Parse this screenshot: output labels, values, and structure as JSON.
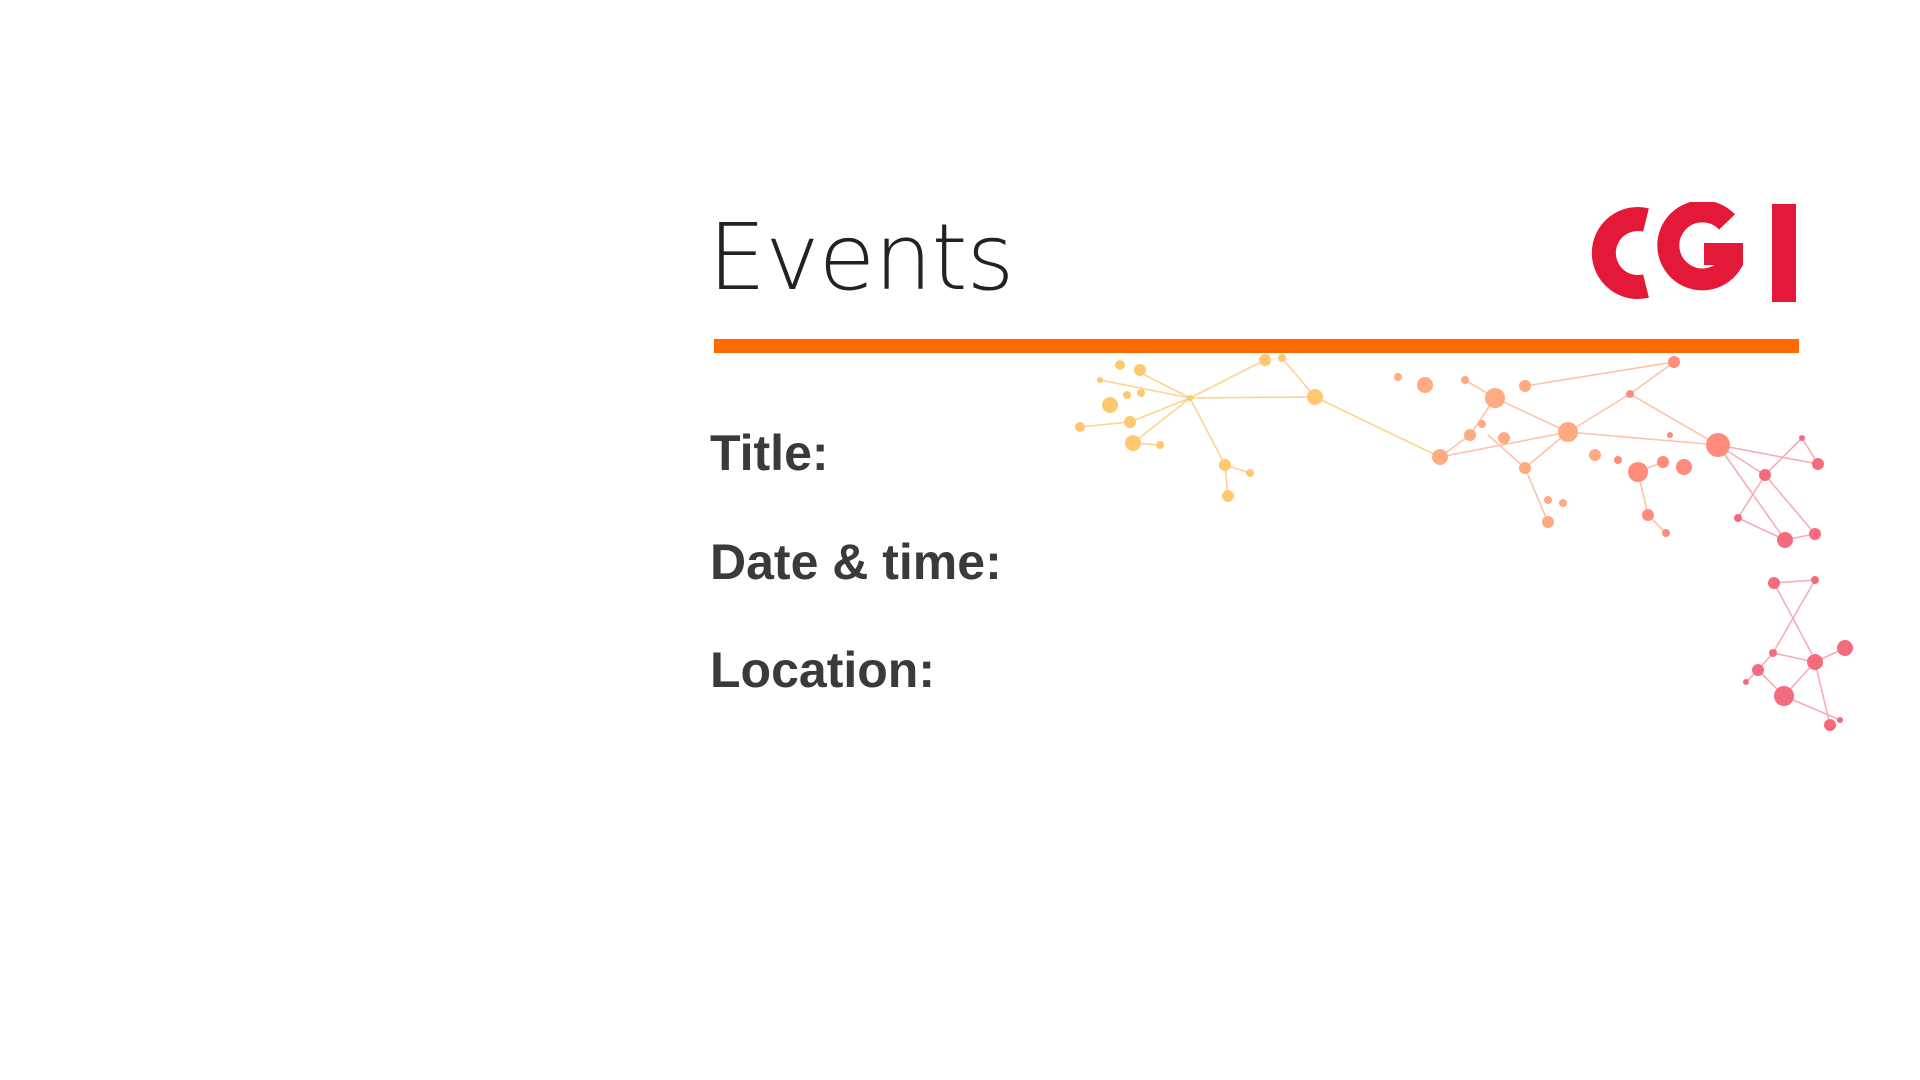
{
  "slide": {
    "heading": "Events",
    "fields": {
      "title_label": "Title:",
      "datetime_label": "Date & time:",
      "location_label": "Location:"
    }
  },
  "logo": {
    "text": "CGI",
    "color": "#e31937"
  },
  "colors": {
    "accent_rule": "#ff6a00",
    "network_warm": "#ffb347",
    "network_cool": "#f25a6e",
    "label_text": "#3a3a3a",
    "heading_text": "#222222"
  }
}
